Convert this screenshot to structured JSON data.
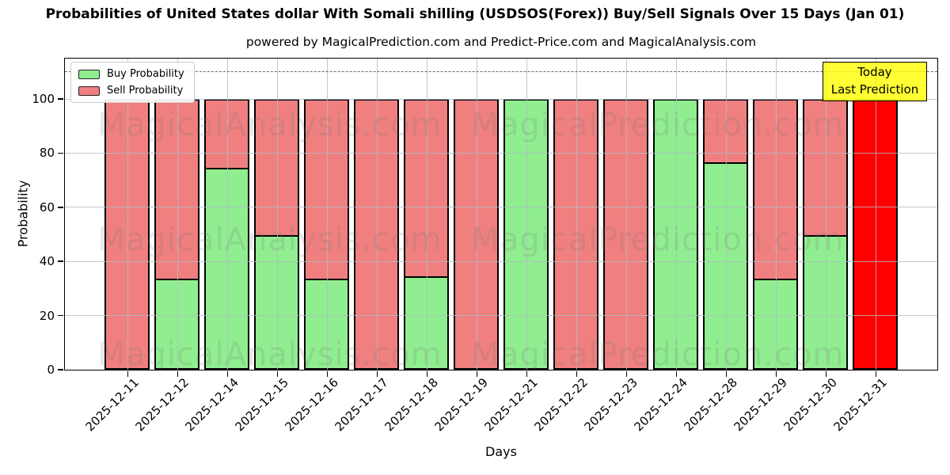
{
  "chart": {
    "title": "Probabilities of United States dollar With Somali shilling (USDSOS(Forex)) Buy/Sell Signals Over 15 Days (Jan 01)",
    "subtitle": "powered by MagicalPrediction.com and Predict-Price.com and MagicalAnalysis.com",
    "xlabel": "Days",
    "ylabel": "Probability",
    "legend": [
      {
        "label": "Buy Probability",
        "color": "#90ee90"
      },
      {
        "label": "Sell Probability",
        "color": "#f08080"
      }
    ],
    "annotation_box": {
      "line1": "Today",
      "line2": "Last Prediction",
      "bg": "#ffff00"
    },
    "watermarks": [
      "MagicalAnalysis.com",
      "MagicalPrediction.com"
    ],
    "colors": {
      "buy": "#90ee90",
      "sell": "#f08080",
      "today_bar": "#ff0000",
      "grid": "#b0bcc3",
      "bar_edge": "#000000"
    }
  },
  "chart_data": {
    "type": "bar",
    "stacked": true,
    "title": "Probabilities of United States dollar With Somali shilling (USDSOS(Forex)) Buy/Sell Signals Over 15 Days (Jan 01)",
    "xlabel": "Days",
    "ylabel": "Probability",
    "legend_position": "upper left",
    "grid": true,
    "categories": [
      "2025-12-11",
      "2025-12-12",
      "2025-12-14",
      "2025-12-15",
      "2025-12-16",
      "2025-12-17",
      "2025-12-18",
      "2025-12-19",
      "2025-12-21",
      "2025-12-22",
      "2025-12-23",
      "2025-12-24",
      "2025-12-28",
      "2025-12-29",
      "2025-12-30",
      "2025-12-31"
    ],
    "series": [
      {
        "name": "Buy Probability",
        "color": "#90ee90",
        "values": [
          0,
          33,
          74,
          49,
          33,
          0,
          34,
          0,
          100,
          0,
          0,
          100,
          76,
          33,
          49,
          0
        ]
      },
      {
        "name": "Sell Probability",
        "color": "#f08080",
        "values": [
          100,
          67,
          26,
          51,
          67,
          100,
          66,
          100,
          0,
          100,
          100,
          0,
          24,
          67,
          51,
          100
        ]
      }
    ],
    "today_bar": {
      "category": "2025-12-31",
      "color": "#ff0000",
      "buy": 0,
      "sell": 100
    },
    "yticks": [
      0,
      20,
      40,
      60,
      80,
      100
    ],
    "ylim": [
      0,
      115.5
    ],
    "dashed_line_y": 110
  }
}
